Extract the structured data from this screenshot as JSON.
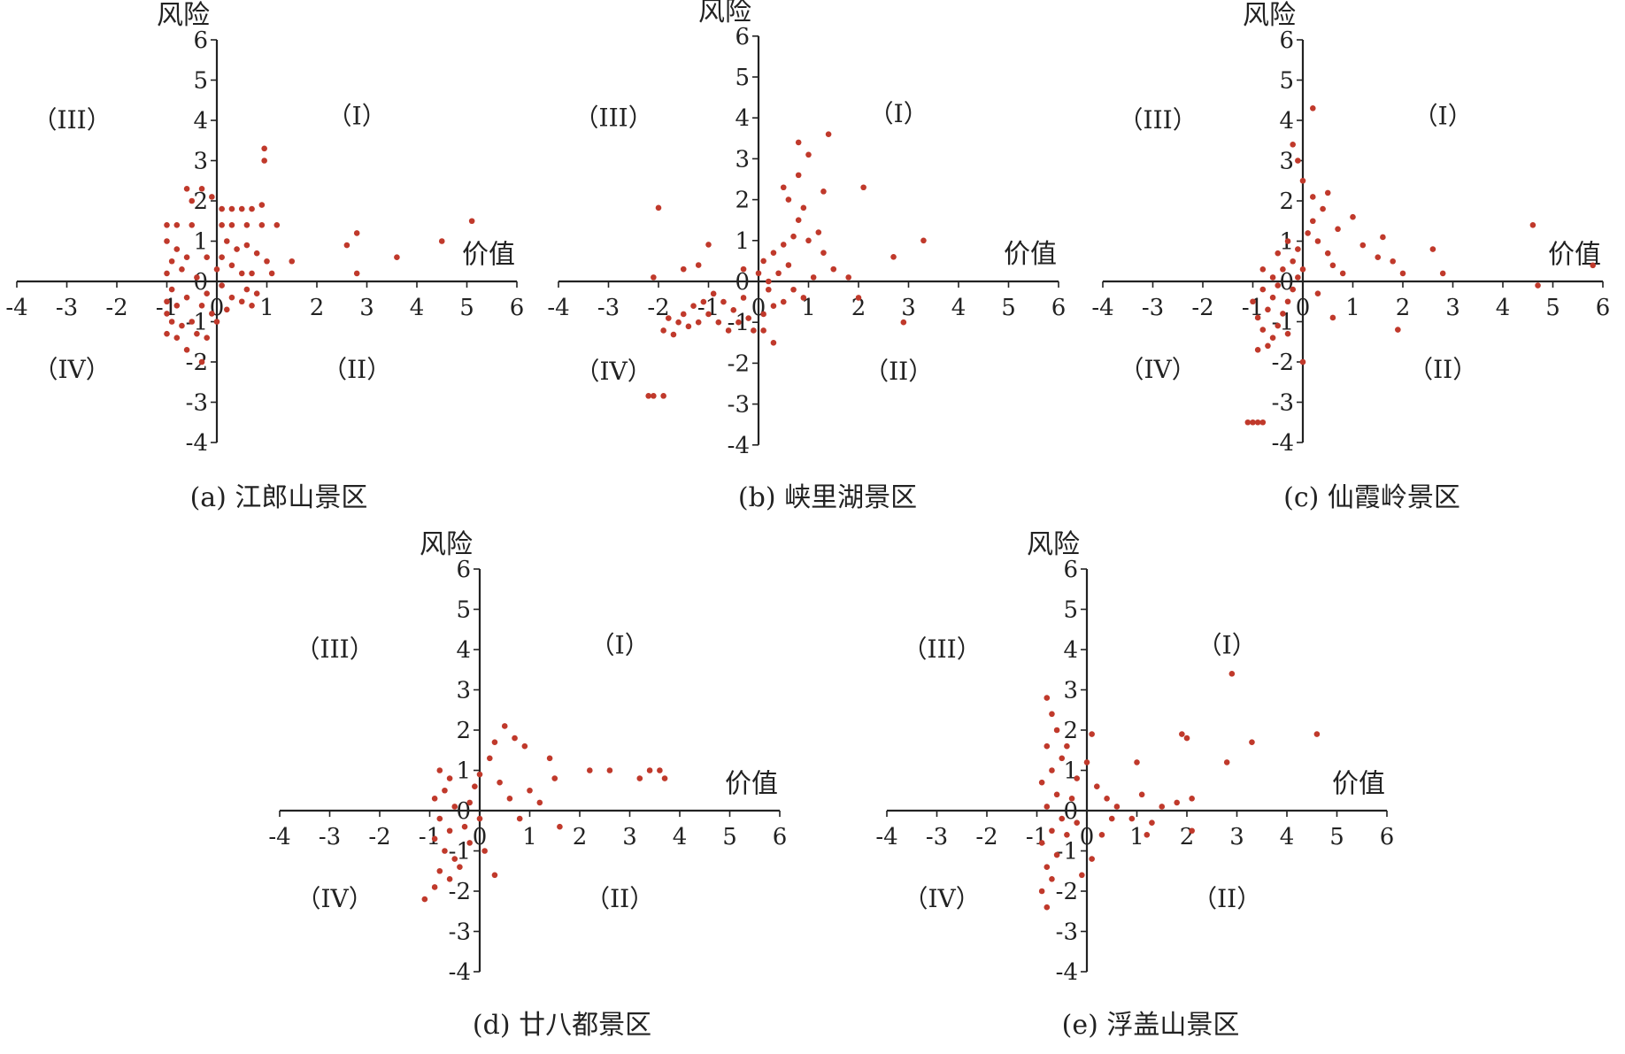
{
  "colors": {
    "point": "#c0392b",
    "axis": "#222222"
  },
  "chart_data": [
    {
      "type": "scatter",
      "caption": "(a) 江郎山景区",
      "xlabel": "价值",
      "ylabel": "风险",
      "xlim": [
        -4,
        6
      ],
      "ylim": [
        -4,
        6
      ],
      "xticks": [
        "-4",
        "-3",
        "-2",
        "-1",
        "0",
        "1",
        "2",
        "3",
        "4",
        "5",
        "6"
      ],
      "yticks": [
        "-4",
        "-3",
        "-2",
        "-1",
        "0",
        "1",
        "2",
        "3",
        "4",
        "5",
        "6"
      ],
      "quadrants": {
        "I": "（I）",
        "II": "（II）",
        "III": "（III）",
        "IV": "（IV）"
      },
      "points": [
        [
          -1.0,
          1.4
        ],
        [
          -0.8,
          1.4
        ],
        [
          -0.5,
          1.4
        ],
        [
          -1.0,
          1.0
        ],
        [
          -0.8,
          0.8
        ],
        [
          -0.6,
          0.6
        ],
        [
          -0.9,
          0.5
        ],
        [
          -1.0,
          0.2
        ],
        [
          -0.7,
          0.3
        ],
        [
          -0.4,
          0.1
        ],
        [
          -0.9,
          -0.2
        ],
        [
          -1.0,
          -0.5
        ],
        [
          -0.8,
          -0.6
        ],
        [
          -0.6,
          -0.4
        ],
        [
          -1.0,
          -0.8
        ],
        [
          -0.9,
          -1.0
        ],
        [
          -0.7,
          -1.1
        ],
        [
          -1.0,
          -1.3
        ],
        [
          -0.8,
          -1.4
        ],
        [
          -0.5,
          -1.0
        ],
        [
          -0.3,
          -0.6
        ],
        [
          -0.2,
          -0.3
        ],
        [
          -0.1,
          -0.8
        ],
        [
          -0.4,
          -1.3
        ],
        [
          -0.2,
          -1.4
        ],
        [
          0.0,
          -1.0
        ],
        [
          0.2,
          -0.7
        ],
        [
          0.3,
          -0.4
        ],
        [
          0.5,
          -0.5
        ],
        [
          0.6,
          -0.2
        ],
        [
          0.7,
          -0.6
        ],
        [
          0.8,
          -0.3
        ],
        [
          -0.3,
          2.3
        ],
        [
          -0.1,
          2.1
        ],
        [
          -0.6,
          2.3
        ],
        [
          -0.5,
          2.0
        ],
        [
          0.1,
          1.8
        ],
        [
          0.3,
          1.8
        ],
        [
          0.5,
          1.8
        ],
        [
          0.7,
          1.8
        ],
        [
          0.9,
          1.9
        ],
        [
          0.1,
          1.4
        ],
        [
          0.3,
          1.4
        ],
        [
          0.6,
          1.4
        ],
        [
          0.9,
          1.4
        ],
        [
          1.2,
          1.4
        ],
        [
          0.2,
          1.0
        ],
        [
          0.4,
          0.8
        ],
        [
          0.6,
          0.9
        ],
        [
          0.8,
          0.7
        ],
        [
          1.0,
          0.5
        ],
        [
          0.3,
          0.4
        ],
        [
          0.5,
          0.2
        ],
        [
          0.7,
          0.2
        ],
        [
          1.1,
          0.2
        ],
        [
          1.5,
          0.5
        ],
        [
          0.95,
          3.3
        ],
        [
          0.95,
          3.0
        ],
        [
          2.6,
          0.9
        ],
        [
          2.8,
          1.2
        ],
        [
          2.8,
          0.2
        ],
        [
          3.6,
          0.6
        ],
        [
          4.5,
          1.0
        ],
        [
          5.1,
          1.5
        ],
        [
          -0.2,
          0.6
        ],
        [
          0.0,
          0.3
        ],
        [
          0.1,
          -0.1
        ],
        [
          -0.6,
          -1.7
        ],
        [
          -0.3,
          -2.0
        ],
        [
          0.1,
          0.6
        ]
      ]
    },
    {
      "type": "scatter",
      "caption": "(b) 峡里湖景区",
      "xlabel": "价值",
      "ylabel": "风险",
      "xlim": [
        -4,
        6
      ],
      "ylim": [
        -4,
        6
      ],
      "xticks": [
        "-4",
        "-3",
        "-2",
        "-1",
        "0",
        "1",
        "2",
        "3",
        "4",
        "5",
        "6"
      ],
      "yticks": [
        "-4",
        "-3",
        "-2",
        "-1",
        "0",
        "1",
        "2",
        "3",
        "4",
        "5",
        "6"
      ],
      "quadrants": {
        "I": "（I）",
        "II": "（II）",
        "III": "（III）",
        "IV": "（IV）"
      },
      "points": [
        [
          -2.0,
          1.8
        ],
        [
          -2.1,
          0.1
        ],
        [
          -1.5,
          0.3
        ],
        [
          -1.2,
          0.4
        ],
        [
          -1.0,
          0.9
        ],
        [
          -1.8,
          -0.9
        ],
        [
          -1.6,
          -1.0
        ],
        [
          -1.4,
          -1.1
        ],
        [
          -1.2,
          -1.0
        ],
        [
          -1.0,
          -0.8
        ],
        [
          -0.8,
          -1.0
        ],
        [
          -0.6,
          -1.2
        ],
        [
          -0.4,
          -1.0
        ],
        [
          -1.9,
          -1.2
        ],
        [
          -1.7,
          -1.3
        ],
        [
          -1.5,
          -0.8
        ],
        [
          -1.3,
          -0.6
        ],
        [
          -1.1,
          -0.5
        ],
        [
          -0.9,
          -0.3
        ],
        [
          -0.7,
          -0.5
        ],
        [
          -0.5,
          -0.7
        ],
        [
          -0.3,
          -0.4
        ],
        [
          -0.2,
          -0.9
        ],
        [
          -0.1,
          -1.2
        ],
        [
          0.1,
          -0.8
        ],
        [
          0.3,
          -0.6
        ],
        [
          0.5,
          -0.5
        ],
        [
          0.7,
          -0.2
        ],
        [
          0.9,
          -0.4
        ],
        [
          0.2,
          -0.2
        ],
        [
          0.0,
          0.2
        ],
        [
          0.1,
          0.5
        ],
        [
          0.3,
          0.7
        ],
        [
          0.5,
          0.9
        ],
        [
          0.7,
          1.1
        ],
        [
          0.8,
          1.5
        ],
        [
          0.9,
          1.8
        ],
        [
          0.6,
          2.0
        ],
        [
          0.5,
          2.3
        ],
        [
          0.8,
          2.6
        ],
        [
          1.3,
          2.2
        ],
        [
          1.0,
          3.1
        ],
        [
          0.8,
          3.4
        ],
        [
          1.4,
          3.6
        ],
        [
          2.1,
          2.3
        ],
        [
          1.2,
          1.2
        ],
        [
          1.3,
          0.7
        ],
        [
          1.5,
          0.3
        ],
        [
          1.8,
          0.1
        ],
        [
          2.0,
          -0.4
        ],
        [
          2.7,
          0.6
        ],
        [
          3.3,
          1.0
        ],
        [
          2.9,
          -1.0
        ],
        [
          -2.1,
          -2.8
        ],
        [
          -1.9,
          -2.8
        ],
        [
          -2.2,
          -2.8
        ],
        [
          0.2,
          0.0
        ],
        [
          0.4,
          0.2
        ],
        [
          0.6,
          0.4
        ],
        [
          -0.3,
          0.3
        ],
        [
          0.1,
          -1.2
        ],
        [
          0.3,
          -1.5
        ],
        [
          1.0,
          1.0
        ],
        [
          1.1,
          0.1
        ]
      ]
    },
    {
      "type": "scatter",
      "caption": "(c) 仙霞岭景区",
      "xlabel": "价值",
      "ylabel": "风险",
      "xlim": [
        -4,
        6
      ],
      "ylim": [
        -4,
        6
      ],
      "xticks": [
        "-4",
        "-3",
        "-2",
        "-1",
        "0",
        "1",
        "2",
        "3",
        "4",
        "5",
        "6"
      ],
      "yticks": [
        "-4",
        "-3",
        "-2",
        "-1",
        "0",
        "1",
        "2",
        "3",
        "4",
        "5",
        "6"
      ],
      "quadrants": {
        "I": "（I）",
        "II": "（II）",
        "III": "（III）",
        "IV": "（IV）"
      },
      "points": [
        [
          -0.8,
          -0.2
        ],
        [
          -0.6,
          -0.4
        ],
        [
          -0.7,
          -0.7
        ],
        [
          -0.9,
          -0.9
        ],
        [
          -0.8,
          -1.2
        ],
        [
          -0.6,
          -1.4
        ],
        [
          -0.7,
          -1.6
        ],
        [
          -0.9,
          -1.7
        ],
        [
          -0.5,
          -1.1
        ],
        [
          -0.4,
          -0.8
        ],
        [
          -0.3,
          -0.5
        ],
        [
          -0.2,
          -0.2
        ],
        [
          -0.1,
          0.1
        ],
        [
          0.0,
          0.3
        ],
        [
          -0.2,
          0.5
        ],
        [
          -0.4,
          0.3
        ],
        [
          -0.6,
          0.1
        ],
        [
          -0.8,
          0.3
        ],
        [
          -0.5,
          0.7
        ],
        [
          -0.3,
          1.0
        ],
        [
          -0.1,
          0.8
        ],
        [
          0.1,
          1.2
        ],
        [
          0.2,
          1.5
        ],
        [
          0.3,
          1.0
        ],
        [
          0.5,
          0.7
        ],
        [
          0.6,
          0.4
        ],
        [
          0.8,
          0.2
        ],
        [
          0.4,
          1.8
        ],
        [
          0.5,
          2.2
        ],
        [
          0.2,
          2.1
        ],
        [
          0.0,
          2.5
        ],
        [
          -0.2,
          3.4
        ],
        [
          0.2,
          4.3
        ],
        [
          -0.1,
          3.0
        ],
        [
          0.7,
          1.3
        ],
        [
          1.0,
          1.6
        ],
        [
          1.2,
          0.9
        ],
        [
          1.5,
          0.6
        ],
        [
          1.6,
          1.1
        ],
        [
          1.8,
          0.5
        ],
        [
          2.0,
          0.2
        ],
        [
          2.6,
          0.8
        ],
        [
          2.8,
          0.2
        ],
        [
          1.9,
          -1.2
        ],
        [
          4.6,
          1.4
        ],
        [
          5.8,
          0.4
        ],
        [
          4.7,
          -0.1
        ],
        [
          -1.1,
          -3.5
        ],
        [
          -1.0,
          -3.5
        ],
        [
          -0.9,
          -3.5
        ],
        [
          -0.8,
          -3.5
        ],
        [
          0.0,
          -2.0
        ],
        [
          -1.0,
          -0.5
        ],
        [
          -0.5,
          -0.1
        ],
        [
          0.3,
          -0.3
        ],
        [
          0.6,
          -0.9
        ],
        [
          -0.3,
          -1.3
        ]
      ]
    },
    {
      "type": "scatter",
      "caption": "(d) 廿八都景区",
      "xlabel": "价值",
      "ylabel": "风险",
      "xlim": [
        -4,
        6
      ],
      "ylim": [
        -4,
        6
      ],
      "xticks": [
        "-4",
        "-3",
        "-2",
        "-1",
        "0",
        "1",
        "2",
        "3",
        "4",
        "5",
        "6"
      ],
      "yticks": [
        "-4",
        "-3",
        "-2",
        "-1",
        "0",
        "1",
        "2",
        "3",
        "4",
        "5",
        "6"
      ],
      "quadrants": {
        "I": "（I）",
        "II": "（II）",
        "III": "（III）",
        "IV": "（IV）"
      },
      "points": [
        [
          -0.8,
          1.0
        ],
        [
          -0.6,
          0.8
        ],
        [
          -0.7,
          0.5
        ],
        [
          -0.9,
          0.3
        ],
        [
          -0.5,
          0.1
        ],
        [
          -0.8,
          -0.2
        ],
        [
          -0.6,
          -0.5
        ],
        [
          -0.9,
          -0.7
        ],
        [
          -0.7,
          -1.0
        ],
        [
          -0.5,
          -1.2
        ],
        [
          -0.8,
          -1.5
        ],
        [
          -0.6,
          -1.7
        ],
        [
          -1.1,
          -2.2
        ],
        [
          -0.9,
          -1.9
        ],
        [
          -0.3,
          -0.4
        ],
        [
          -0.2,
          0.2
        ],
        [
          -0.1,
          0.6
        ],
        [
          0.0,
          0.9
        ],
        [
          0.2,
          1.3
        ],
        [
          0.3,
          1.7
        ],
        [
          0.5,
          2.1
        ],
        [
          0.7,
          1.8
        ],
        [
          0.9,
          1.6
        ],
        [
          0.4,
          0.7
        ],
        [
          0.6,
          0.3
        ],
        [
          0.8,
          -0.2
        ],
        [
          1.0,
          0.5
        ],
        [
          1.2,
          0.2
        ],
        [
          1.5,
          0.8
        ],
        [
          1.6,
          -0.4
        ],
        [
          1.4,
          1.3
        ],
        [
          2.2,
          1.0
        ],
        [
          2.6,
          1.0
        ],
        [
          3.2,
          0.8
        ],
        [
          3.4,
          1.0
        ],
        [
          3.6,
          1.0
        ],
        [
          3.7,
          0.8
        ],
        [
          0.1,
          -1.0
        ],
        [
          0.3,
          -1.6
        ],
        [
          -0.4,
          -1.4
        ],
        [
          -0.2,
          -0.8
        ],
        [
          0.0,
          -0.2
        ]
      ]
    },
    {
      "type": "scatter",
      "caption": "(e) 浮盖山景区",
      "xlabel": "价值",
      "ylabel": "风险",
      "xlim": [
        -4,
        6
      ],
      "ylim": [
        -4,
        6
      ],
      "xticks": [
        "-4",
        "-3",
        "-2",
        "-1",
        "0",
        "1",
        "2",
        "3",
        "4",
        "5",
        "6"
      ],
      "yticks": [
        "-4",
        "-3",
        "-2",
        "-1",
        "0",
        "1",
        "2",
        "3",
        "4",
        "5",
        "6"
      ],
      "quadrants": {
        "I": "（I）",
        "II": "（II）",
        "III": "（III）",
        "IV": "（IV）"
      },
      "points": [
        [
          -0.8,
          2.8
        ],
        [
          -0.7,
          2.4
        ],
        [
          -0.6,
          2.0
        ],
        [
          -0.8,
          1.6
        ],
        [
          -0.5,
          1.3
        ],
        [
          -0.7,
          1.0
        ],
        [
          -0.9,
          0.7
        ],
        [
          -0.6,
          0.4
        ],
        [
          -0.8,
          0.1
        ],
        [
          -0.5,
          -0.2
        ],
        [
          -0.7,
          -0.5
        ],
        [
          -0.9,
          -0.8
        ],
        [
          -0.6,
          -1.1
        ],
        [
          -0.8,
          -1.4
        ],
        [
          -0.7,
          -1.7
        ],
        [
          -0.9,
          -2.0
        ],
        [
          -0.8,
          -2.4
        ],
        [
          -0.4,
          -0.6
        ],
        [
          -0.3,
          0.3
        ],
        [
          -0.2,
          0.8
        ],
        [
          0.1,
          1.9
        ],
        [
          0.0,
          1.2
        ],
        [
          0.2,
          0.6
        ],
        [
          0.4,
          0.3
        ],
        [
          0.6,
          0.1
        ],
        [
          0.9,
          -0.2
        ],
        [
          1.1,
          0.4
        ],
        [
          1.3,
          -0.3
        ],
        [
          1.5,
          0.1
        ],
        [
          1.8,
          0.2
        ],
        [
          2.1,
          0.3
        ],
        [
          1.0,
          1.2
        ],
        [
          1.9,
          1.9
        ],
        [
          2.0,
          1.8
        ],
        [
          2.8,
          1.2
        ],
        [
          2.9,
          3.4
        ],
        [
          3.3,
          1.7
        ],
        [
          4.6,
          1.9
        ],
        [
          2.1,
          -0.5
        ],
        [
          0.1,
          -1.2
        ],
        [
          0.3,
          -0.6
        ],
        [
          -0.1,
          -1.6
        ],
        [
          -0.4,
          1.6
        ],
        [
          -0.2,
          -0.3
        ],
        [
          0.5,
          -0.2
        ],
        [
          1.2,
          -0.6
        ]
      ]
    }
  ]
}
